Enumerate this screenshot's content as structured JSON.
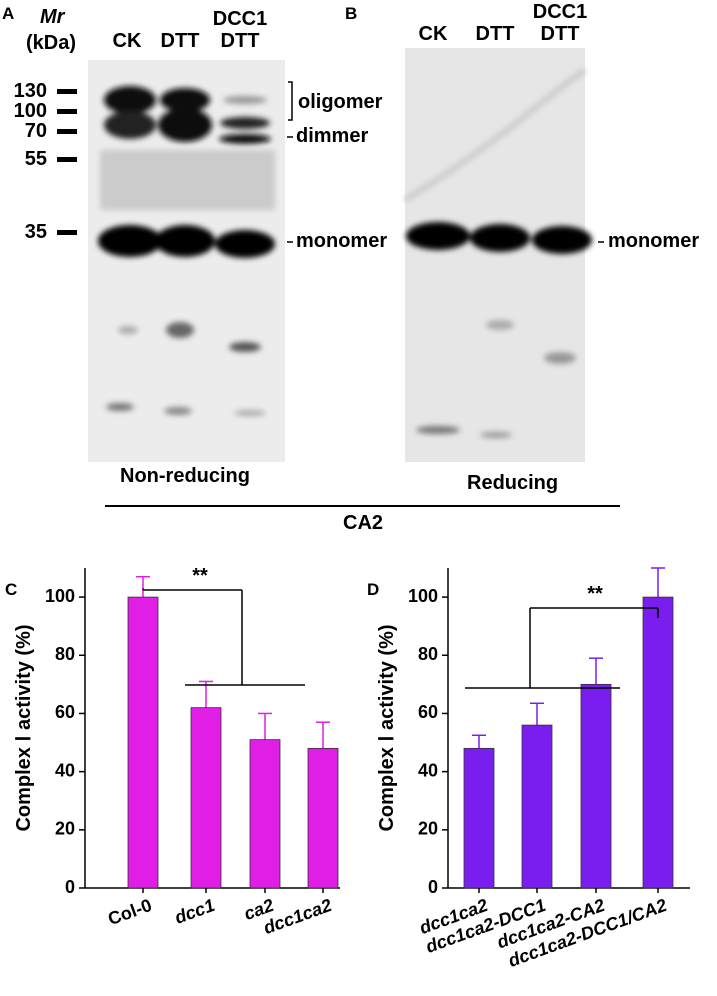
{
  "panel_a": {
    "label": "A",
    "mr_label": "Mr",
    "unit_label": "(kDa)",
    "lanes": [
      "CK",
      "DTT",
      "DCC1 DTT"
    ],
    "markers": [
      "130",
      "100",
      "70",
      "55",
      "35"
    ],
    "annotations": [
      "oligomer",
      "dimmer",
      "monomer"
    ],
    "condition": "Non-reducing"
  },
  "panel_b": {
    "label": "B",
    "lanes": [
      "CK",
      "DTT",
      "DCC1 DTT"
    ],
    "annotations": [
      "monomer"
    ],
    "condition": "Reducing"
  },
  "group_label": "CA2",
  "chart_data": [
    {
      "type": "bar",
      "panel_label": "C",
      "ylabel": "Complex Ⅰ activity (%)",
      "categories": [
        "Col-0",
        "dcc1",
        "ca2",
        "dcc1ca2"
      ],
      "values": [
        100,
        62,
        51,
        48
      ],
      "errors": [
        7,
        9,
        9,
        9
      ],
      "color": "#e01ee6",
      "ylim": [
        0,
        110
      ],
      "yticks": [
        0,
        20,
        40,
        60,
        80,
        100
      ],
      "annotation": "**"
    },
    {
      "type": "bar",
      "panel_label": "D",
      "ylabel": "Complex Ⅰ activity (%)",
      "categories": [
        "dcc1ca2",
        "dcc1ca2-DCC1",
        "dcc1ca2-CA2",
        "dcc1ca2-DCC1/CA2"
      ],
      "values": [
        48,
        56,
        70,
        100
      ],
      "errors": [
        4.5,
        7.5,
        9,
        10
      ],
      "color": "#7a1ef0",
      "ylim": [
        0,
        110
      ],
      "yticks": [
        0,
        20,
        40,
        60,
        80,
        100
      ],
      "annotation": "**"
    }
  ]
}
